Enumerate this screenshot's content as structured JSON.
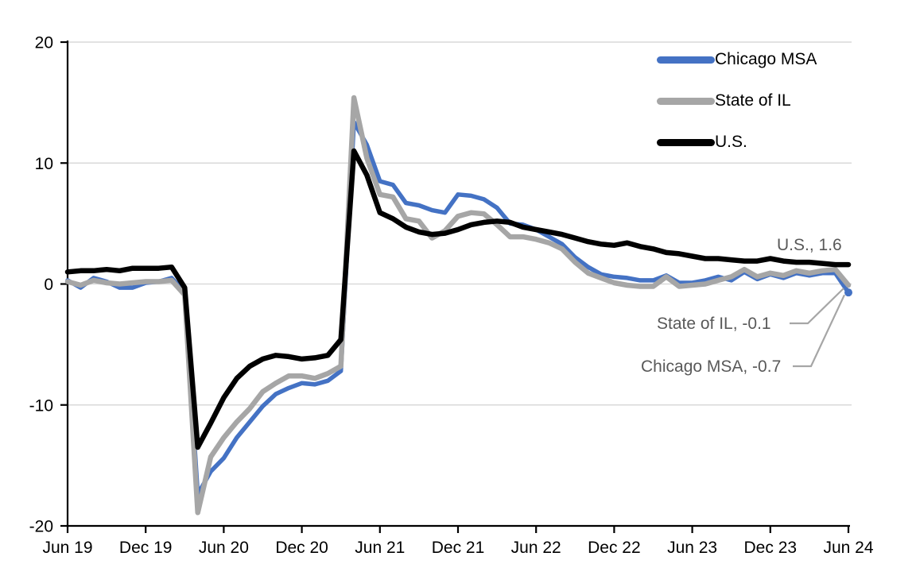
{
  "chart_data": {
    "type": "line",
    "title": "",
    "frequency": "monthly",
    "x_start": "Jun 2019",
    "x_end": "Jun 2024",
    "x_tick_labels": [
      "Jun 19",
      "Dec 19",
      "Jun 20",
      "Dec 20",
      "Jun 21",
      "Dec 21",
      "Jun 22",
      "Dec 22",
      "Jun 23",
      "Dec 23",
      "Jun 24"
    ],
    "x_tick_indices": [
      0,
      6,
      12,
      18,
      24,
      30,
      36,
      42,
      48,
      54,
      60
    ],
    "y_ticks": [
      20,
      10,
      0,
      -10,
      -20
    ],
    "ylim": [
      -20,
      20
    ],
    "grid": true,
    "legend_position": "top-right",
    "colors": {
      "chicago_msa": "#4472C4",
      "state_of_il": "#A6A6A6",
      "us": "#000000",
      "gridline": "#D9D9D9",
      "axis": "#000000",
      "annotation_text": "#595959",
      "leader_line": "#A6A6A6"
    },
    "series": [
      {
        "name": "Chicago MSA",
        "color": "#4472C4",
        "end_marker": true,
        "values": [
          0.3,
          -0.3,
          0.5,
          0.2,
          -0.3,
          -0.3,
          0.1,
          0.2,
          0.5,
          -0.7,
          -17.4,
          -15.5,
          -14.4,
          -12.7,
          -11.4,
          -10.1,
          -9.1,
          -8.6,
          -8.2,
          -8.3,
          -8.0,
          -7.2,
          13.4,
          11.5,
          8.5,
          8.2,
          6.7,
          6.5,
          6.1,
          5.9,
          7.4,
          7.3,
          7.0,
          6.3,
          5.0,
          4.9,
          4.5,
          3.9,
          3.3,
          2.2,
          1.4,
          0.8,
          0.6,
          0.5,
          0.3,
          0.3,
          0.7,
          0.1,
          0.1,
          0.3,
          0.6,
          0.3,
          1.0,
          0.4,
          0.8,
          0.5,
          0.9,
          0.7,
          0.9,
          0.9,
          -0.7
        ]
      },
      {
        "name": "State of IL",
        "color": "#A6A6A6",
        "end_marker": false,
        "values": [
          0.2,
          -0.1,
          0.3,
          0.1,
          0.0,
          0.1,
          0.2,
          0.2,
          0.3,
          -0.9,
          -18.9,
          -14.3,
          -12.7,
          -11.4,
          -10.3,
          -8.9,
          -8.2,
          -7.6,
          -7.6,
          -7.8,
          -7.4,
          -6.8,
          15.4,
          10.4,
          7.4,
          7.2,
          5.4,
          5.2,
          3.8,
          4.4,
          5.6,
          5.9,
          5.8,
          4.9,
          3.9,
          3.9,
          3.7,
          3.4,
          2.9,
          1.8,
          0.9,
          0.5,
          0.1,
          -0.1,
          -0.2,
          -0.2,
          0.6,
          -0.2,
          -0.1,
          0.0,
          0.3,
          0.6,
          1.2,
          0.6,
          0.9,
          0.7,
          1.1,
          0.9,
          1.1,
          1.2,
          -0.1
        ]
      },
      {
        "name": "U.S.",
        "color": "#000000",
        "end_marker": false,
        "values": [
          1.0,
          1.1,
          1.1,
          1.2,
          1.1,
          1.3,
          1.3,
          1.3,
          1.4,
          -0.3,
          -13.5,
          -11.5,
          -9.4,
          -7.8,
          -6.8,
          -6.2,
          -5.9,
          -6.0,
          -6.2,
          -6.1,
          -5.9,
          -4.6,
          11.0,
          9.0,
          5.9,
          5.4,
          4.7,
          4.3,
          4.1,
          4.2,
          4.5,
          4.9,
          5.1,
          5.2,
          5.1,
          4.7,
          4.5,
          4.3,
          4.1,
          3.8,
          3.5,
          3.3,
          3.2,
          3.4,
          3.1,
          2.9,
          2.6,
          2.5,
          2.3,
          2.1,
          2.1,
          2.0,
          1.9,
          1.9,
          2.1,
          1.9,
          1.8,
          1.8,
          1.7,
          1.6,
          1.6
        ]
      }
    ],
    "annotations": [
      {
        "label": "U.S., 1.6",
        "series": "U.S.",
        "value": 1.6
      },
      {
        "label": "State of IL, -0.1",
        "series": "State of IL",
        "value": -0.1
      },
      {
        "label": "Chicago MSA, -0.7",
        "series": "Chicago MSA",
        "value": -0.7
      }
    ]
  }
}
